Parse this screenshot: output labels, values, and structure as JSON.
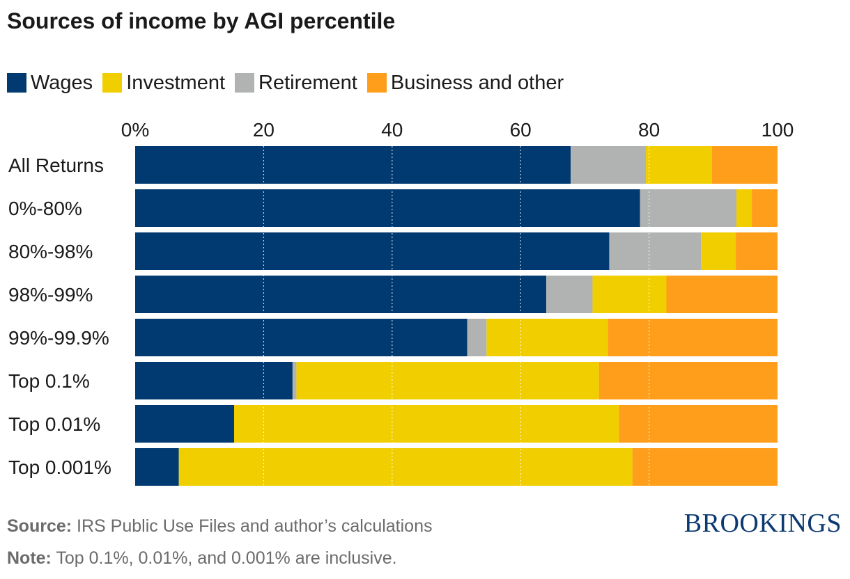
{
  "title": "Sources of income by AGI percentile",
  "legend": [
    {
      "label": "Wages",
      "color": "#003a70"
    },
    {
      "label": "Investment",
      "color": "#f0ce00"
    },
    {
      "label": "Retirement",
      "color": "#b1b3b3"
    },
    {
      "label": "Business and other",
      "color": "#ff9e1b"
    }
  ],
  "footer": {
    "source_label": "Source:",
    "source_text": "IRS Public Use Files and author’s calculations",
    "note_label": "Note:",
    "note_text": "Top 0.1%, 0.01%, and 0.001% are inclusive."
  },
  "brand": "BROOKINGS",
  "chart_data": {
    "type": "bar",
    "orientation": "horizontal",
    "stacked": true,
    "xlim": [
      0,
      100
    ],
    "ticks": [
      "0%",
      "20",
      "40",
      "60",
      "80",
      "100"
    ],
    "tick_values": [
      0,
      20,
      40,
      60,
      80,
      100
    ],
    "grid": "dotted vertical",
    "legend_placement": "top-left",
    "categories": [
      "All Returns",
      "0%-80%",
      "80%-98%",
      "98%-99%",
      "99%-99.9%",
      "Top 0.1%",
      "Top 0.01%",
      "Top 0.001%"
    ],
    "stack_order": [
      "Wages",
      "Retirement",
      "Investment",
      "Business and other"
    ],
    "series": [
      {
        "name": "Wages",
        "color": "#003a70",
        "values": [
          67.8,
          78.6,
          73.8,
          64.0,
          51.7,
          24.5,
          15.4,
          6.8
        ]
      },
      {
        "name": "Retirement",
        "color": "#b1b3b3",
        "values": [
          11.7,
          15.0,
          14.3,
          7.2,
          3.0,
          0.6,
          0.0,
          0.0
        ]
      },
      {
        "name": "Investment",
        "color": "#f0ce00",
        "values": [
          10.3,
          2.4,
          5.4,
          11.5,
          18.9,
          47.1,
          59.9,
          70.6
        ]
      },
      {
        "name": "Business and other",
        "color": "#ff9e1b",
        "values": [
          10.2,
          4.0,
          6.5,
          17.3,
          26.4,
          27.8,
          24.7,
          22.6
        ]
      }
    ]
  }
}
